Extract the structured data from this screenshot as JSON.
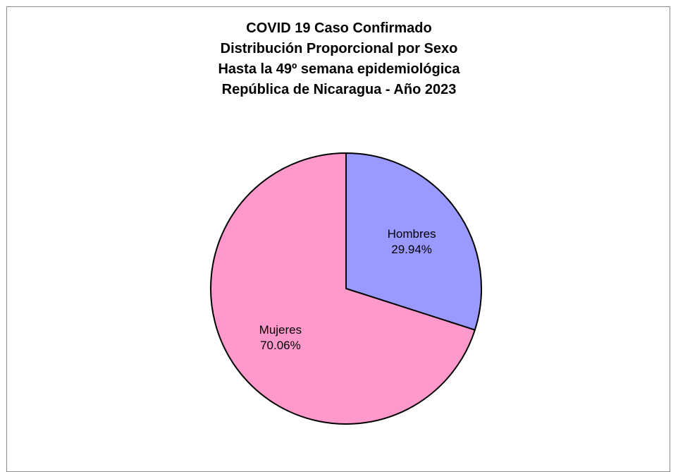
{
  "chart_data": {
    "type": "pie",
    "title": [
      "COVID 19 Caso Confirmado",
      "Distribución Proporcional por Sexo",
      "Hasta la 49º semana epidemiológica",
      "República de Nicaragua - Año 2023"
    ],
    "categories": [
      "Hombres",
      "Mujeres"
    ],
    "values": [
      29.94,
      70.06
    ],
    "value_labels": [
      "29.94%",
      "70.06%"
    ],
    "colors": [
      "#9999ff",
      "#ff99cc"
    ],
    "legend": "none",
    "start_angle": "12 o'clock, clockwise"
  }
}
